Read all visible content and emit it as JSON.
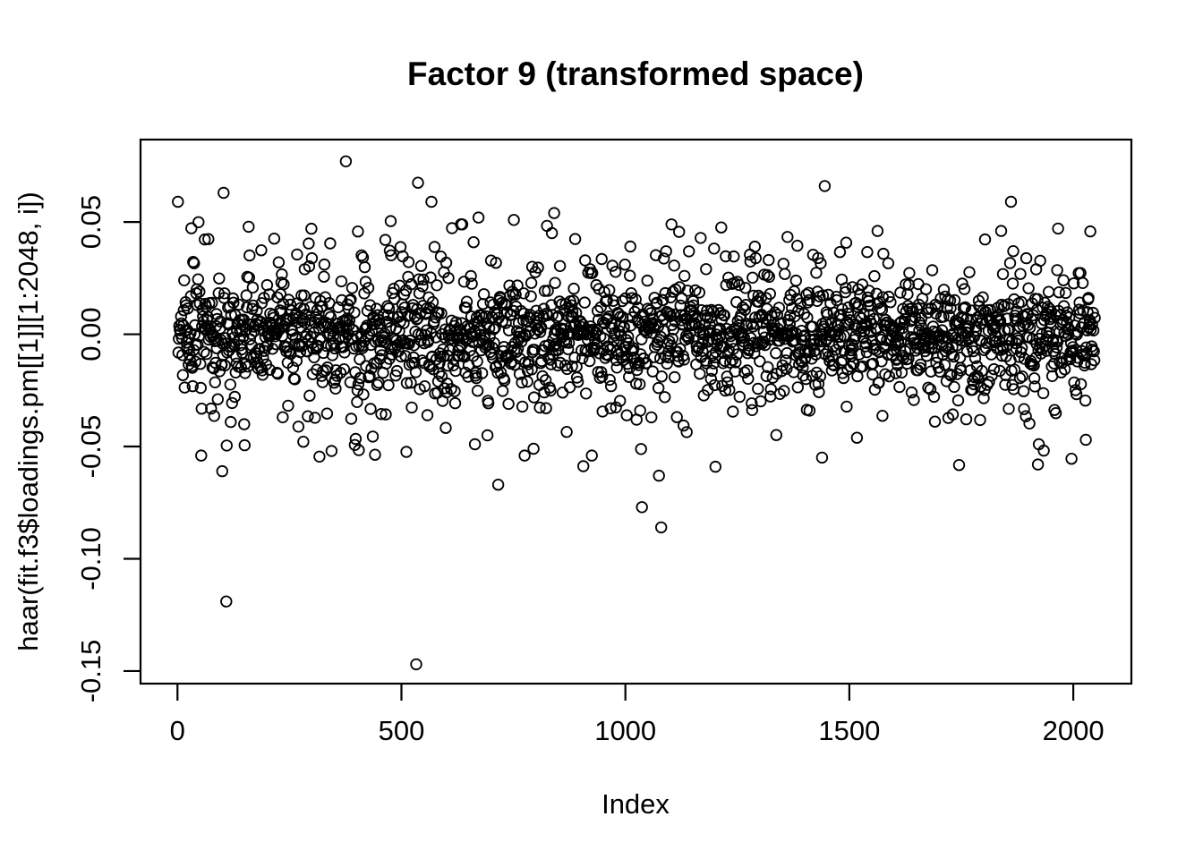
{
  "colors": {
    "foreground": "#000000",
    "background": "#ffffff"
  },
  "chart_data": {
    "type": "scatter",
    "title": "Factor 9 (transformed space)",
    "xlabel": "Index",
    "ylabel": "haar(fit.f3$loadings.pm[[1]][1:2048, i])",
    "x_tick_values": [
      0,
      500,
      1000,
      1500,
      2000
    ],
    "x_tick_labels": [
      "0",
      "500",
      "1000",
      "1500",
      "2000"
    ],
    "y_tick_values": [
      0.05,
      0.0,
      -0.05,
      -0.1,
      -0.15
    ],
    "y_tick_labels": [
      "0.05",
      "0.00",
      "-0.05",
      "-0.10",
      "-0.15"
    ],
    "xlim": [
      -82.5,
      2129.7
    ],
    "ylim": [
      -0.1556,
      0.0867
    ],
    "grid": false,
    "legend": false,
    "marker": {
      "shape": "open-circle",
      "color": "#000000"
    },
    "n_points": 2048,
    "x_range": [
      1,
      2048
    ],
    "y_min_observed": -0.147,
    "y_max_observed": 0.077,
    "notable_points": [
      [
        1,
        0.059
      ],
      [
        53,
        -0.054
      ],
      [
        100,
        -0.061
      ],
      [
        103,
        0.063
      ],
      [
        109,
        -0.119
      ],
      [
        299,
        0.047
      ],
      [
        317,
        -0.0545
      ],
      [
        344,
        -0.052
      ],
      [
        376,
        0.077
      ],
      [
        533,
        -0.147
      ],
      [
        537,
        0.0675
      ],
      [
        567,
        0.059
      ],
      [
        664,
        -0.049
      ],
      [
        672,
        0.052
      ],
      [
        692,
        -0.045
      ],
      [
        716,
        -0.067
      ],
      [
        775,
        -0.054
      ],
      [
        795,
        -0.051
      ],
      [
        841,
        0.054
      ],
      [
        925,
        -0.054
      ],
      [
        1037,
        -0.077
      ],
      [
        1075,
        -0.063
      ],
      [
        1080,
        -0.086
      ],
      [
        1201,
        -0.059
      ],
      [
        1445,
        0.066
      ],
      [
        1563,
        0.046
      ],
      [
        1839,
        0.046
      ],
      [
        1861,
        0.059
      ],
      [
        1921,
        -0.058
      ],
      [
        1923,
        -0.049
      ],
      [
        2028,
        -0.047
      ]
    ],
    "bulk_distribution": {
      "description": "remaining points: zero-mean gaussian mixture noise band",
      "seed": 90211,
      "mean": 0,
      "mixture": [
        {
          "weight": 0.5,
          "sd": 0.009
        },
        {
          "weight": 0.35,
          "sd": 0.018
        },
        {
          "weight": 0.15,
          "sd": 0.027
        }
      ],
      "clip": [
        -0.06,
        0.0525
      ]
    }
  }
}
